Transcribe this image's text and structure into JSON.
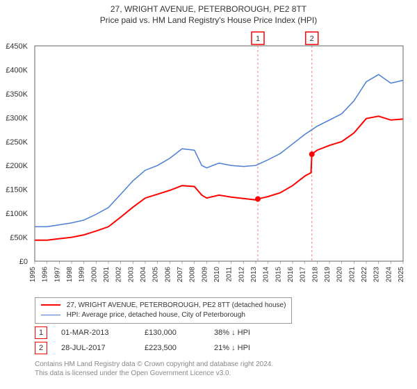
{
  "title": "27, WRIGHT AVENUE, PETERBOROUGH, PE2 8TT",
  "subtitle": "Price paid vs. HM Land Registry's House Price Index (HPI)",
  "chart": {
    "type": "line",
    "background_color": "#ffffff",
    "grid_color": "#cccccc",
    "axis_color": "#666666",
    "y_axis": {
      "min": 0,
      "max": 450000,
      "tick_step": 50000,
      "tick_labels": [
        "£0",
        "£50K",
        "£100K",
        "£150K",
        "£200K",
        "£250K",
        "£300K",
        "£350K",
        "£400K",
        "£450K"
      ],
      "label_fontsize": 11
    },
    "x_axis": {
      "min": 1995,
      "max": 2025,
      "tick_step": 1,
      "tick_labels": [
        "1995",
        "1996",
        "1997",
        "1998",
        "1999",
        "2000",
        "2001",
        "2002",
        "2003",
        "2004",
        "2005",
        "2006",
        "2007",
        "2008",
        "2009",
        "2010",
        "2011",
        "2012",
        "2013",
        "2014",
        "2015",
        "2016",
        "2017",
        "2018",
        "2019",
        "2020",
        "2021",
        "2022",
        "2023",
        "2024",
        "2025"
      ],
      "label_fontsize": 10,
      "label_rotation": -90
    },
    "band": {
      "from": 2013.17,
      "to": 2017.57,
      "fill_rgba": "100,150,255,0.10"
    },
    "markers": [
      {
        "label": "1",
        "x": 2013.17,
        "y": 130000
      },
      {
        "label": "2",
        "x": 2017.57,
        "y": 223500
      }
    ],
    "marker_box_stroke": "#ff0000",
    "series": [
      {
        "name": "property",
        "label": "27, WRIGHT AVENUE, PETERBOROUGH, PE2 8TT (detached house)",
        "color": "#ff0000",
        "line_width": 2,
        "points": [
          [
            1995,
            44000
          ],
          [
            1996,
            44000
          ],
          [
            1997,
            47000
          ],
          [
            1998,
            50000
          ],
          [
            1999,
            55000
          ],
          [
            2000,
            63000
          ],
          [
            2001,
            72000
          ],
          [
            2002,
            92000
          ],
          [
            2003,
            113000
          ],
          [
            2004,
            132000
          ],
          [
            2005,
            140000
          ],
          [
            2006,
            148000
          ],
          [
            2007,
            158000
          ],
          [
            2008,
            156000
          ],
          [
            2008.6,
            138000
          ],
          [
            2009,
            132000
          ],
          [
            2010,
            138000
          ],
          [
            2011,
            134000
          ],
          [
            2012,
            131000
          ],
          [
            2013,
            128000
          ],
          [
            2013.17,
            130000
          ],
          [
            2014,
            135000
          ],
          [
            2015,
            143000
          ],
          [
            2016,
            158000
          ],
          [
            2017,
            178000
          ],
          [
            2017.5,
            185000
          ],
          [
            2017.57,
            223500
          ],
          [
            2018,
            232000
          ],
          [
            2019,
            242000
          ],
          [
            2020,
            250000
          ],
          [
            2021,
            268000
          ],
          [
            2022,
            298000
          ],
          [
            2023,
            303000
          ],
          [
            2024,
            295000
          ],
          [
            2025,
            297000
          ]
        ]
      },
      {
        "name": "hpi",
        "label": "HPI: Average price, detached house, City of Peterborough",
        "color": "#4a7dd6",
        "line_width": 1.5,
        "points": [
          [
            1995,
            72000
          ],
          [
            1996,
            72000
          ],
          [
            1997,
            76000
          ],
          [
            1998,
            80000
          ],
          [
            1999,
            86000
          ],
          [
            2000,
            98000
          ],
          [
            2001,
            112000
          ],
          [
            2002,
            140000
          ],
          [
            2003,
            168000
          ],
          [
            2004,
            190000
          ],
          [
            2005,
            200000
          ],
          [
            2006,
            215000
          ],
          [
            2007,
            235000
          ],
          [
            2008,
            232000
          ],
          [
            2008.6,
            200000
          ],
          [
            2009,
            195000
          ],
          [
            2010,
            205000
          ],
          [
            2011,
            200000
          ],
          [
            2012,
            198000
          ],
          [
            2013,
            200000
          ],
          [
            2014,
            212000
          ],
          [
            2015,
            225000
          ],
          [
            2016,
            245000
          ],
          [
            2017,
            265000
          ],
          [
            2018,
            282000
          ],
          [
            2019,
            295000
          ],
          [
            2020,
            308000
          ],
          [
            2021,
            335000
          ],
          [
            2022,
            375000
          ],
          [
            2023,
            390000
          ],
          [
            2024,
            372000
          ],
          [
            2025,
            378000
          ]
        ]
      }
    ]
  },
  "legend": {
    "items": [
      {
        "color": "#ff0000",
        "width": 2,
        "label": "27, WRIGHT AVENUE, PETERBOROUGH, PE2 8TT (detached house)"
      },
      {
        "color": "#4a7dd6",
        "width": 1.5,
        "label": "HPI: Average price, detached house, City of Peterborough"
      }
    ]
  },
  "sales": [
    {
      "idx": "1",
      "date": "01-MAR-2013",
      "price": "£130,000",
      "diff": "38% ↓ HPI"
    },
    {
      "idx": "2",
      "date": "28-JUL-2017",
      "price": "£223,500",
      "diff": "21% ↓ HPI"
    }
  ],
  "footnote_line1": "Contains HM Land Registry data © Crown copyright and database right 2024.",
  "footnote_line2": "This data is licensed under the Open Government Licence v3.0."
}
